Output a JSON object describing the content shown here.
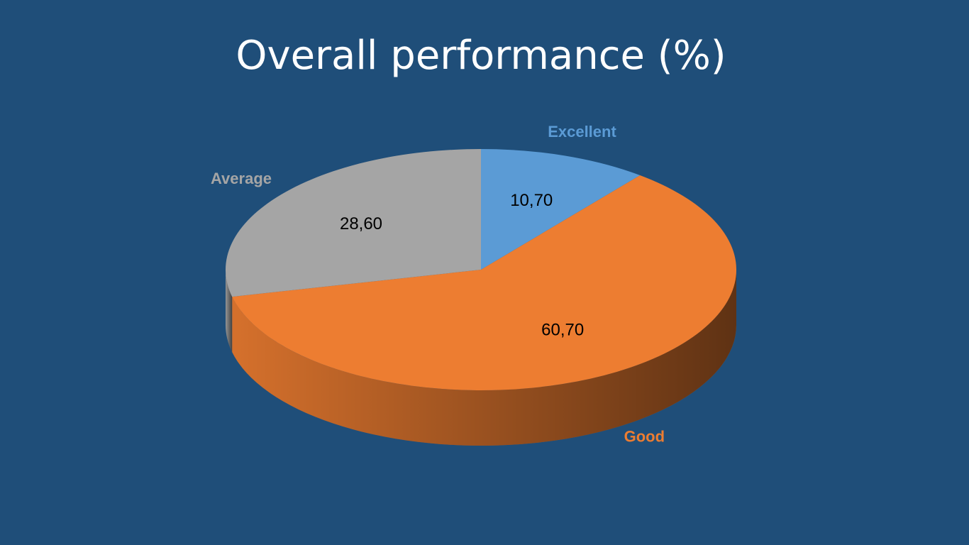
{
  "chart_data": {
    "type": "pie",
    "title": "Overall performance (%)",
    "categories": [
      "Excellent",
      "Good",
      "Average"
    ],
    "values": [
      10.7,
      60.7,
      28.6
    ],
    "value_labels": [
      "10,70",
      "60,70",
      "28,60"
    ],
    "colors": [
      "#5b9bd5",
      "#ed7d31",
      "#a5a5a5"
    ]
  }
}
